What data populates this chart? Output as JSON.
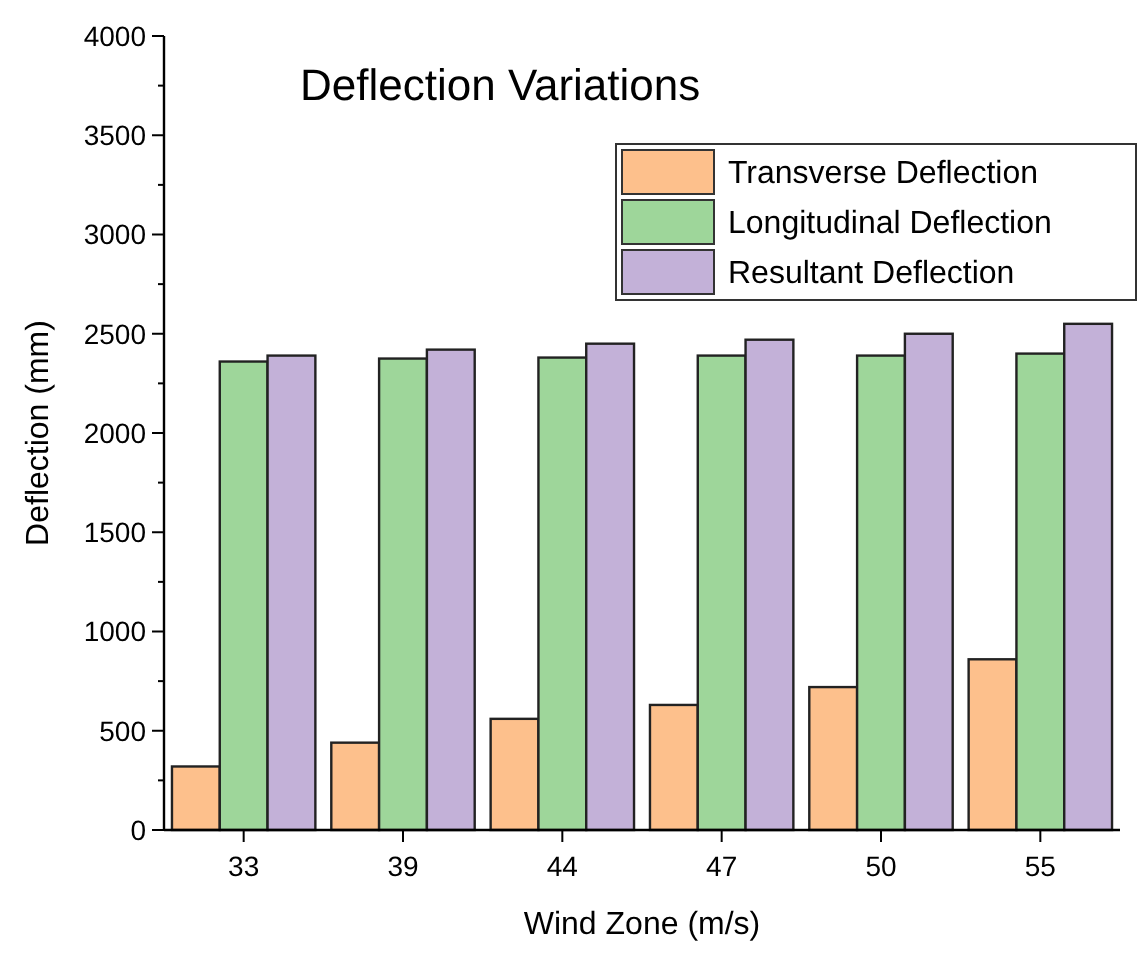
{
  "chart_data": {
    "type": "bar",
    "title": "Deflection Variations",
    "xlabel": "Wind Zone (m/s)",
    "ylabel": "Deflection (mm)",
    "categories": [
      "33",
      "39",
      "44",
      "47",
      "50",
      "55"
    ],
    "series": [
      {
        "name": "Transverse Deflection",
        "color": "#fdc08c",
        "values": [
          320,
          440,
          560,
          630,
          720,
          860
        ]
      },
      {
        "name": "Longitudinal Deflection",
        "color": "#9ed69a",
        "values": [
          2360,
          2375,
          2380,
          2390,
          2390,
          2400
        ]
      },
      {
        "name": "Resultant Deflection",
        "color": "#c3b1d8",
        "values": [
          2390,
          2420,
          2450,
          2470,
          2500,
          2550
        ]
      }
    ],
    "ylim": [
      0,
      4000
    ],
    "yticks": [
      0,
      {
        "value": 250,
        "label": null
      },
      500,
      {
        "value": 750,
        "label": null
      },
      1000,
      {
        "value": 1250,
        "label": null
      },
      1500,
      {
        "value": 1750,
        "label": null
      },
      2000,
      {
        "value": 2250,
        "label": null
      },
      2500,
      {
        "value": 2750,
        "label": null
      },
      3000,
      {
        "value": 3250,
        "label": null
      },
      3500,
      {
        "value": 3750,
        "label": null
      },
      4000
    ],
    "grid": false,
    "legend": "top right"
  }
}
